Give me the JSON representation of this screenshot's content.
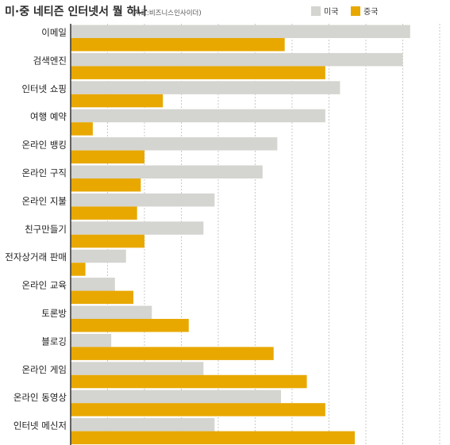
{
  "title": "미·중 네티즌 인터넷서 뭘 하나",
  "source": "(자료:비즈니스인사이더)",
  "colors": {
    "us": "#d4d4d0",
    "china": "#e8a800",
    "grid": "#c8c8c8",
    "axis": "#333333"
  },
  "chart_data": {
    "type": "bar",
    "orientation": "horizontal",
    "title": "미·중 네티즌 인터넷서 뭘 하나",
    "legend_position": "top-right",
    "grid": true,
    "xlim": [
      0,
      100
    ],
    "categories": [
      "이메일",
      "검색엔진",
      "인터넷 쇼핑",
      "여행 예약",
      "온라인 뱅킹",
      "온라인 구직",
      "온라인 지불",
      "친구만들기",
      "전자상거래 판매",
      "온라인 교육",
      "토론방",
      "블로깅",
      "온라인 게임",
      "온라인 동영상",
      "인터넷 메신저"
    ],
    "series": [
      {
        "name": "미국",
        "color": "#d4d4d0",
        "values": [
          92,
          90,
          73,
          69,
          56,
          52,
          39,
          36,
          15,
          12,
          22,
          11,
          36,
          57,
          39
        ]
      },
      {
        "name": "중국",
        "color": "#e8a800",
        "values": [
          58,
          69,
          25,
          6,
          20,
          19,
          18,
          20,
          4,
          17,
          32,
          55,
          64,
          69,
          77
        ]
      }
    ]
  }
}
